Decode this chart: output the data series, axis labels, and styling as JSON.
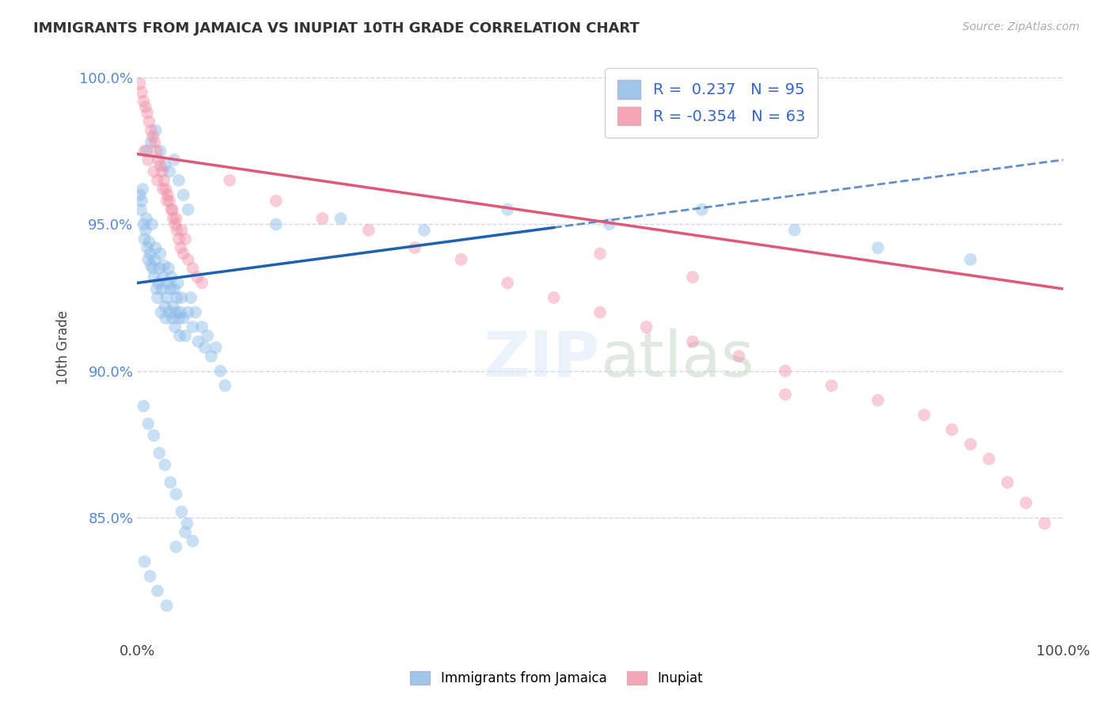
{
  "title": "IMMIGRANTS FROM JAMAICA VS INUPIAT 10TH GRADE CORRELATION CHART",
  "source_text": "Source: ZipAtlas.com",
  "ylabel": "10th Grade",
  "xlim": [
    0.0,
    1.0
  ],
  "ylim": [
    0.808,
    1.008
  ],
  "x_tick_labels": [
    "0.0%",
    "100.0%"
  ],
  "x_tick_positions": [
    0.0,
    1.0
  ],
  "y_tick_labels": [
    "85.0%",
    "90.0%",
    "95.0%",
    "100.0%"
  ],
  "y_tick_positions": [
    0.85,
    0.9,
    0.95,
    1.0
  ],
  "blue_R": 0.237,
  "blue_N": 95,
  "pink_R": -0.354,
  "pink_N": 63,
  "blue_color": "#88b8e8",
  "pink_color": "#f090a8",
  "blue_line_color": "#2060b0",
  "pink_line_color": "#e05878",
  "blue_line_solid_end": 0.45,
  "blue_line_start_y": 0.93,
  "blue_line_end_y": 0.972,
  "pink_line_start_y": 0.974,
  "pink_line_end_y": 0.928,
  "blue_scatter_x": [
    0.003,
    0.004,
    0.005,
    0.006,
    0.007,
    0.008,
    0.009,
    0.01,
    0.011,
    0.012,
    0.013,
    0.014,
    0.015,
    0.016,
    0.017,
    0.018,
    0.019,
    0.02,
    0.021,
    0.022,
    0.023,
    0.024,
    0.025,
    0.026,
    0.027,
    0.028,
    0.029,
    0.03,
    0.031,
    0.032,
    0.033,
    0.034,
    0.035,
    0.036,
    0.037,
    0.038,
    0.039,
    0.04,
    0.041,
    0.042,
    0.043,
    0.044,
    0.045,
    0.046,
    0.047,
    0.048,
    0.05,
    0.052,
    0.055,
    0.058,
    0.06,
    0.063,
    0.066,
    0.07,
    0.073,
    0.076,
    0.08,
    0.085,
    0.09,
    0.095,
    0.01,
    0.015,
    0.02,
    0.025,
    0.03,
    0.035,
    0.04,
    0.045,
    0.05,
    0.055,
    0.007,
    0.012,
    0.018,
    0.024,
    0.03,
    0.036,
    0.042,
    0.048,
    0.054,
    0.06,
    0.008,
    0.014,
    0.022,
    0.032,
    0.042,
    0.052,
    0.15,
    0.22,
    0.31,
    0.4,
    0.51,
    0.61,
    0.71,
    0.8,
    0.9
  ],
  "blue_scatter_y": [
    0.96,
    0.955,
    0.958,
    0.962,
    0.95,
    0.945,
    0.948,
    0.952,
    0.942,
    0.938,
    0.944,
    0.94,
    0.936,
    0.95,
    0.935,
    0.932,
    0.938,
    0.942,
    0.928,
    0.925,
    0.93,
    0.935,
    0.94,
    0.92,
    0.928,
    0.932,
    0.936,
    0.922,
    0.918,
    0.925,
    0.93,
    0.935,
    0.92,
    0.928,
    0.932,
    0.918,
    0.922,
    0.928,
    0.915,
    0.92,
    0.925,
    0.93,
    0.918,
    0.912,
    0.92,
    0.925,
    0.918,
    0.912,
    0.92,
    0.925,
    0.915,
    0.92,
    0.91,
    0.915,
    0.908,
    0.912,
    0.905,
    0.908,
    0.9,
    0.895,
    0.975,
    0.978,
    0.982,
    0.975,
    0.97,
    0.968,
    0.972,
    0.965,
    0.96,
    0.955,
    0.888,
    0.882,
    0.878,
    0.872,
    0.868,
    0.862,
    0.858,
    0.852,
    0.848,
    0.842,
    0.835,
    0.83,
    0.825,
    0.82,
    0.84,
    0.845,
    0.95,
    0.952,
    0.948,
    0.955,
    0.95,
    0.955,
    0.948,
    0.942,
    0.938
  ],
  "pink_scatter_x": [
    0.003,
    0.005,
    0.007,
    0.009,
    0.011,
    0.013,
    0.015,
    0.017,
    0.019,
    0.021,
    0.023,
    0.025,
    0.027,
    0.029,
    0.031,
    0.033,
    0.035,
    0.037,
    0.039,
    0.041,
    0.043,
    0.045,
    0.047,
    0.05,
    0.055,
    0.06,
    0.065,
    0.07,
    0.1,
    0.15,
    0.2,
    0.25,
    0.3,
    0.35,
    0.4,
    0.45,
    0.5,
    0.55,
    0.6,
    0.65,
    0.7,
    0.75,
    0.8,
    0.85,
    0.88,
    0.9,
    0.92,
    0.94,
    0.96,
    0.98,
    0.5,
    0.6,
    0.7,
    0.008,
    0.012,
    0.018,
    0.022,
    0.028,
    0.032,
    0.038,
    0.042,
    0.048,
    0.052
  ],
  "pink_scatter_y": [
    0.998,
    0.995,
    0.992,
    0.99,
    0.988,
    0.985,
    0.982,
    0.98,
    0.978,
    0.975,
    0.972,
    0.97,
    0.968,
    0.965,
    0.962,
    0.96,
    0.958,
    0.955,
    0.952,
    0.95,
    0.948,
    0.945,
    0.942,
    0.94,
    0.938,
    0.935,
    0.932,
    0.93,
    0.965,
    0.958,
    0.952,
    0.948,
    0.942,
    0.938,
    0.93,
    0.925,
    0.92,
    0.915,
    0.91,
    0.905,
    0.9,
    0.895,
    0.89,
    0.885,
    0.88,
    0.875,
    0.87,
    0.862,
    0.855,
    0.848,
    0.94,
    0.932,
    0.892,
    0.975,
    0.972,
    0.968,
    0.965,
    0.962,
    0.958,
    0.955,
    0.952,
    0.948,
    0.945
  ]
}
